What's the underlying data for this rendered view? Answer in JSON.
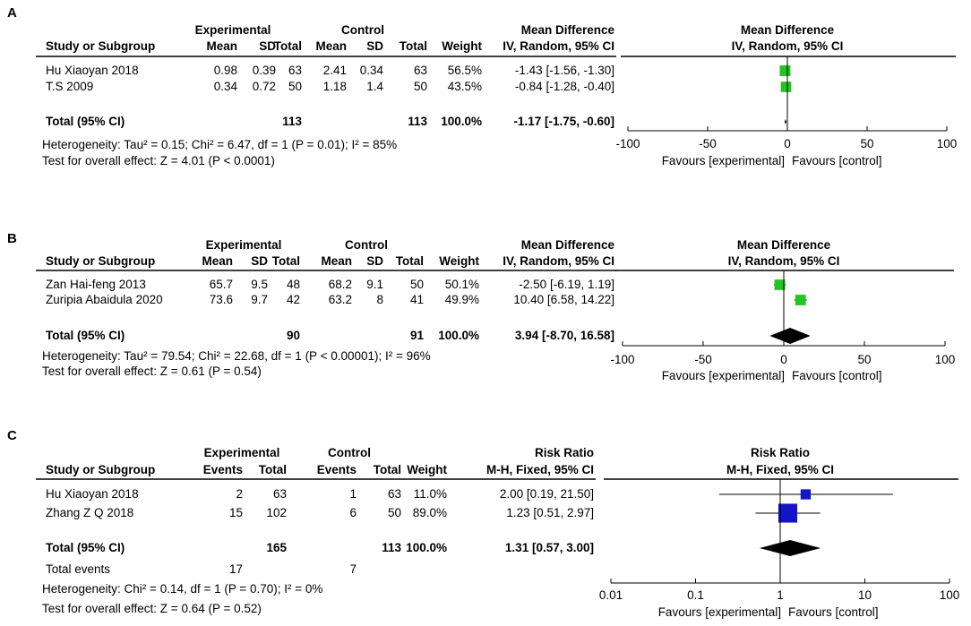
{
  "colors": {
    "green": "#22c422",
    "blue": "#1515c8",
    "black": "#000000"
  },
  "chart_data": [
    {
      "type": "forest",
      "panel_label": "A",
      "scale": "linear",
      "group_headers": [
        "Experimental",
        "Control"
      ],
      "columns": [
        "Study or Subgroup",
        "Mean",
        "SD",
        "Total",
        "Mean",
        "SD",
        "Total",
        "Weight",
        "IV, Random, 95% CI"
      ],
      "effect_header": "Mean Difference",
      "plot_title": "Mean Difference",
      "plot_subtitle": "IV, Random, 95% CI",
      "studies": [
        {
          "name": "Hu Xiaoyan 2018",
          "cells": [
            "0.98",
            "0.39",
            "63",
            "2.41",
            "0.34",
            "63",
            "56.5%"
          ],
          "ci_text": "-1.43 [-1.56, -1.30]",
          "est": -1.43,
          "lo": -1.56,
          "hi": -1.3,
          "weight": 56.5
        },
        {
          "name": "T.S 2009",
          "cells": [
            "0.34",
            "0.72",
            "50",
            "1.18",
            "1.4",
            "50",
            "43.5%"
          ],
          "ci_text": "-0.84 [-1.28, -0.40]",
          "est": -0.84,
          "lo": -1.28,
          "hi": -0.4,
          "weight": 43.5
        }
      ],
      "total": {
        "label": "Total (95% CI)",
        "exp_total": "113",
        "ctrl_total": "113",
        "weight": "100.0%",
        "ci_text": "-1.17 [-1.75, -0.60]",
        "est": -1.17,
        "lo": -1.75,
        "hi": -0.6
      },
      "total_events": null,
      "notes": [
        "Heterogeneity: Tau² = 0.15; Chi² = 6.47, df = 1 (P = 0.01); I² = 85%",
        "Test for overall effect: Z = 4.01 (P < 0.0001)"
      ],
      "xlim": [
        -100,
        100
      ],
      "null_value": 0,
      "ticks": [
        -100,
        -50,
        0,
        50,
        100
      ],
      "tick_labels": [
        "-100",
        "-50",
        "0",
        "50",
        "100"
      ],
      "favours": [
        "Favours [experimental]",
        "Favours [control]"
      ]
    },
    {
      "type": "forest",
      "panel_label": "B",
      "scale": "linear",
      "group_headers": [
        "Experimental",
        "Control"
      ],
      "columns": [
        "Study or Subgroup",
        "Mean",
        "SD",
        "Total",
        "Mean",
        "SD",
        "Total",
        "Weight",
        "IV, Random, 95% CI"
      ],
      "effect_header": "Mean Difference",
      "plot_title": "Mean Difference",
      "plot_subtitle": "IV, Random, 95% CI",
      "studies": [
        {
          "name": "Zan Hai-feng 2013",
          "cells": [
            "65.7",
            "9.5",
            "48",
            "68.2",
            "9.1",
            "50",
            "50.1%"
          ],
          "ci_text": "-2.50 [-6.19, 1.19]",
          "est": -2.5,
          "lo": -6.19,
          "hi": 1.19,
          "weight": 50.1
        },
        {
          "name": "Zuripia Abaidula 2020",
          "cells": [
            "73.6",
            "9.7",
            "42",
            "63.2",
            "8",
            "41",
            "49.9%"
          ],
          "ci_text": "10.40 [6.58, 14.22]",
          "est": 10.4,
          "lo": 6.58,
          "hi": 14.22,
          "weight": 49.9
        }
      ],
      "total": {
        "label": "Total (95% CI)",
        "exp_total": "90",
        "ctrl_total": "91",
        "weight": "100.0%",
        "ci_text": "3.94 [-8.70, 16.58]",
        "est": 3.94,
        "lo": -8.7,
        "hi": 16.58
      },
      "total_events": null,
      "notes": [
        "Heterogeneity: Tau² = 79.54; Chi² = 22.68, df = 1 (P < 0.00001); I² = 96%",
        "Test for overall effect: Z = 0.61 (P = 0.54)"
      ],
      "xlim": [
        -100,
        100
      ],
      "null_value": 0,
      "ticks": [
        -100,
        -50,
        0,
        50,
        100
      ],
      "tick_labels": [
        "-100",
        "-50",
        "0",
        "50",
        "100"
      ],
      "favours": [
        "Favours [experimental]",
        "Favours [control]"
      ]
    },
    {
      "type": "forest",
      "panel_label": "C",
      "scale": "log",
      "group_headers": [
        "Experimental",
        "Control"
      ],
      "columns": [
        "Study or Subgroup",
        "Events",
        "Total",
        "Events",
        "Total",
        "Weight",
        "M-H, Fixed, 95% CI"
      ],
      "effect_header": "Risk Ratio",
      "plot_title": "Risk Ratio",
      "plot_subtitle": "M-H, Fixed, 95% CI",
      "studies": [
        {
          "name": "Hu Xiaoyan 2018",
          "cells": [
            "2",
            "63",
            "1",
            "63",
            "11.0%"
          ],
          "ci_text": "2.00 [0.19, 21.50]",
          "est": 2.0,
          "lo": 0.19,
          "hi": 21.5,
          "weight": 11.0
        },
        {
          "name": "Zhang Z Q 2018",
          "cells": [
            "15",
            "102",
            "6",
            "50",
            "89.0%"
          ],
          "ci_text": "1.23 [0.51, 2.97]",
          "est": 1.23,
          "lo": 0.51,
          "hi": 2.97,
          "weight": 89.0
        }
      ],
      "total": {
        "label": "Total (95% CI)",
        "exp_total": "165",
        "ctrl_total": "113",
        "weight": "100.0%",
        "ci_text": "1.31 [0.57, 3.00]",
        "est": 1.31,
        "lo": 0.57,
        "hi": 3.0
      },
      "total_events": {
        "label": "Total events",
        "exp": "17",
        "ctrl": "7"
      },
      "notes": [
        "Heterogeneity: Chi² = 0.14, df = 1 (P = 0.70); I² = 0%",
        "Test for overall effect: Z = 0.64 (P = 0.52)"
      ],
      "xlim": [
        0.01,
        100
      ],
      "null_value": 1,
      "ticks": [
        0.01,
        0.1,
        1,
        10,
        100
      ],
      "tick_labels": [
        "0.01",
        "0.1",
        "1",
        "10",
        "100"
      ],
      "favours": [
        "Favours [experimental]",
        "Favours [control]"
      ]
    }
  ]
}
